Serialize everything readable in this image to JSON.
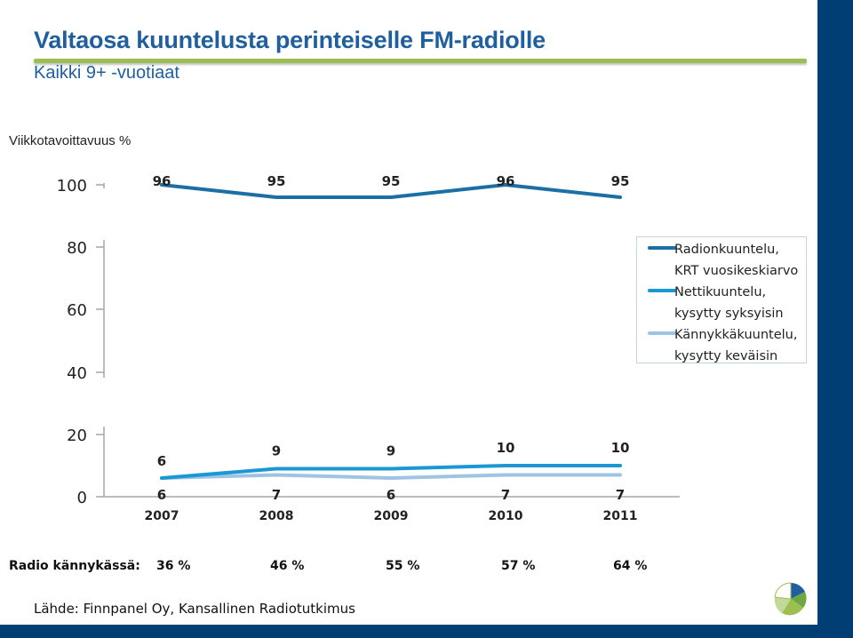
{
  "header": {
    "title": "Valtaosa kuuntelusta perinteiselle FM-radiolle",
    "subtitle": "Kaikki 9+ -vuotiaat"
  },
  "colors": {
    "title": "#1f5f9f",
    "accent_rule": "#9dbf52",
    "frame": "#003e73",
    "series_radio": "#1b6fa5",
    "series_net": "#1b98d3",
    "series_mobile": "#9fc3e4"
  },
  "chart_data": {
    "type": "line",
    "title": "Valtaosa kuuntelusta perinteiselle FM-radiolle",
    "subtitle": "Kaikki 9+ -vuotiaat",
    "ylabel": "Viikkotavoittavuus %",
    "xlabel": "",
    "ylim": [
      0,
      100
    ],
    "axis_break": true,
    "y_ticks": [
      0,
      20,
      40,
      60,
      80,
      100
    ],
    "categories": [
      "2007",
      "2008",
      "2009",
      "2010",
      "2011"
    ],
    "series": [
      {
        "name": "Radionkuuntelu,\nKRT vuosikeskiarvo",
        "values": [
          96,
          95,
          95,
          96,
          95
        ],
        "data_labels": [
          "96",
          "95",
          "95",
          "96",
          "95"
        ]
      },
      {
        "name": "Nettikuuntelu,\nkysytty syksyisin",
        "values": [
          6,
          9,
          9,
          10,
          10
        ],
        "data_labels": [
          "6",
          "9",
          "9",
          "10",
          "10"
        ]
      },
      {
        "name": "Kännykkäkuuntelu,\nkysytty keväisin",
        "values": [
          6,
          7,
          6,
          7,
          7
        ],
        "data_labels": [
          "6",
          "7",
          "6",
          "7",
          "7"
        ]
      }
    ],
    "legend_position": "right"
  },
  "radio_phone": {
    "label": "Radio kännykässä:",
    "values": [
      "36 %",
      "46 %",
      "55 %",
      "57 %",
      "64 %"
    ]
  },
  "source": "Lähde: Finnpanel Oy, Kansallinen Radiotutkimus"
}
